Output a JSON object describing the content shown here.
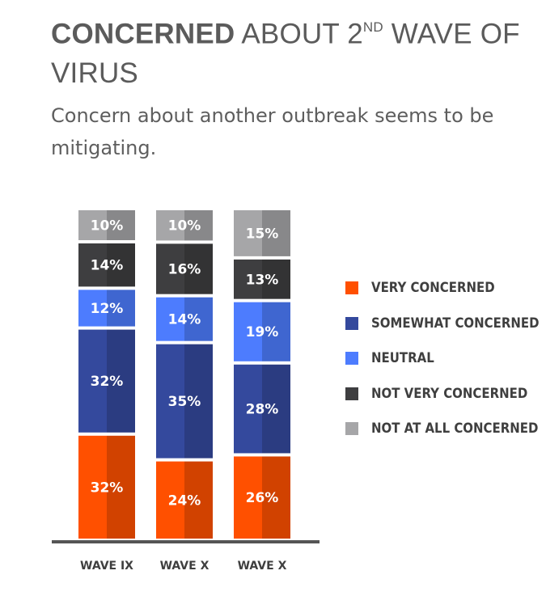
{
  "header": {
    "title_bold": "CONCERNED",
    "title_pre": " ABOUT 2",
    "title_sup": "ND",
    "title_post": " WAVE OF VIRUS",
    "subtitle": "Concern about another outbreak seems to be mitigating."
  },
  "chart_data": {
    "type": "bar",
    "stacked": true,
    "categories": [
      "WAVE IX",
      "WAVE X",
      "WAVE X"
    ],
    "series": [
      {
        "name": "VERY CONCERNED",
        "color": "#ff5000",
        "values": [
          32,
          24,
          26
        ]
      },
      {
        "name": "SOMEWHAT CONCERNED",
        "color": "#34499d",
        "values": [
          32,
          35,
          28
        ]
      },
      {
        "name": "NEUTRAL",
        "color": "#4d7cfe",
        "values": [
          12,
          14,
          19
        ]
      },
      {
        "name": "NOT VERY CONCERNED",
        "color": "#3e3e40",
        "values": [
          14,
          16,
          13
        ]
      },
      {
        "name": "NOT AT ALL CONCERNED",
        "color": "#a6a6a8",
        "values": [
          10,
          10,
          15
        ]
      }
    ],
    "value_suffix": "%",
    "legend_position": "right",
    "grid": false,
    "ylim": [
      0,
      100
    ]
  }
}
